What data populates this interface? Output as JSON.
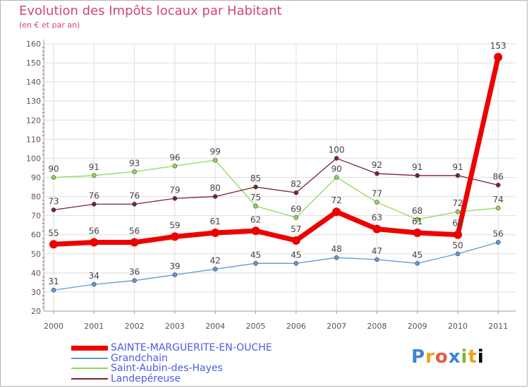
{
  "title": "Evolution des Impôts locaux par Habitant",
  "subtitle": "(en € et par an)",
  "logo_text": "Proxiti",
  "chart_data": {
    "type": "line",
    "title": "Evolution des Impôts locaux par Habitant",
    "subtitle": "(en € et par an)",
    "xlabel": "",
    "ylabel": "",
    "categories": [
      "2000",
      "2001",
      "2002",
      "2003",
      "2004",
      "2005",
      "2006",
      "2007",
      "2008",
      "2009",
      "2010",
      "2011"
    ],
    "ylim": [
      20,
      160
    ],
    "yticks": [
      20,
      30,
      40,
      50,
      60,
      70,
      80,
      90,
      100,
      110,
      120,
      130,
      140,
      150,
      160
    ],
    "grid": true,
    "legend_position": "bottom-left",
    "series": [
      {
        "name": "SAINTE-MARGUERITE-EN-OUCHE",
        "color": "#ee0000",
        "emphasis": "bold",
        "values": [
          55,
          56,
          56,
          59,
          61,
          62,
          57,
          72,
          63,
          61,
          60,
          153
        ]
      },
      {
        "name": "Grandchain",
        "color": "#5b9bd5",
        "emphasis": "normal",
        "values": [
          31,
          34,
          36,
          39,
          42,
          45,
          45,
          48,
          47,
          45,
          50,
          56
        ]
      },
      {
        "name": "Saint-Aubin-des-Hayes",
        "color": "#8fd85a",
        "emphasis": "normal",
        "values": [
          90,
          91,
          93,
          96,
          99,
          75,
          69,
          90,
          77,
          68,
          72,
          74
        ]
      },
      {
        "name": "Landepéreuse",
        "color": "#7a2230",
        "emphasis": "normal",
        "values": [
          73,
          76,
          76,
          79,
          80,
          85,
          82,
          100,
          92,
          91,
          91,
          86
        ]
      }
    ]
  }
}
